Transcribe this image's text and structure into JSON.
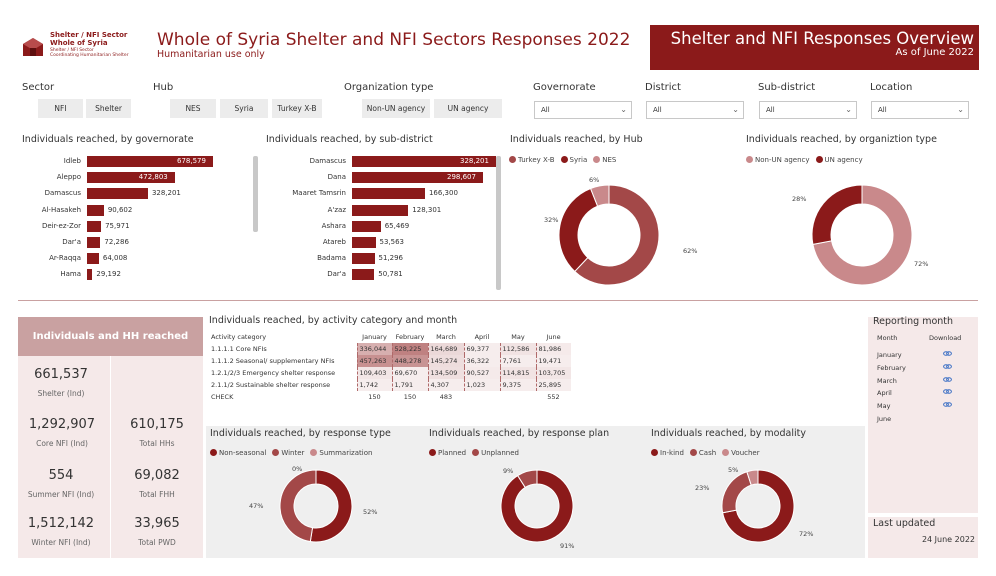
{
  "header": {
    "logo_line1": "Shelter / NFI Sector",
    "logo_line2": "Whole of Syria",
    "logo_line3": "Shelter / NFI Sector",
    "logo_line4": "Coordinating Humanitarian Shelter",
    "title": "Whole of Syria Shelter and NFI Sectors Responses 2022",
    "subtitle": "Humanitarian use only",
    "banner_title": "Shelter and NFI Responses Overview",
    "banner_sub": "As of June 2022"
  },
  "filters": {
    "sector": {
      "label": "Sector",
      "options": [
        "NFI",
        "Shelter"
      ]
    },
    "hub": {
      "label": "Hub",
      "options": [
        "NES",
        "Syria",
        "Turkey X-B"
      ]
    },
    "org": {
      "label": "Organization type",
      "options": [
        "Non-UN agency",
        "UN agency"
      ]
    },
    "governorate": {
      "label": "Governorate",
      "value": "All"
    },
    "district": {
      "label": "District",
      "value": "All"
    },
    "subdistrict": {
      "label": "Sub-district",
      "value": "All"
    },
    "location": {
      "label": "Location",
      "value": "All"
    }
  },
  "chart_data": [
    {
      "type": "bar",
      "title": "Individuals reached, by governorate",
      "categories": [
        "Idleb",
        "Aleppo",
        "Damascus",
        "Al-Hasakeh",
        "Deir-ez-Zor",
        "Dar'a",
        "Ar-Raqqa",
        "Hama"
      ],
      "values": [
        678579,
        472803,
        328201,
        90602,
        75971,
        72286,
        64008,
        29192
      ],
      "labels": [
        "678,579",
        "472,803",
        "328,201",
        "90,602",
        "75,971",
        "72,286",
        "64,008",
        "29,192"
      ]
    },
    {
      "type": "bar",
      "title": "Individuals reached, by sub-district",
      "categories": [
        "Damascus",
        "Dana",
        "Maaret Tamsrin",
        "A'zaz",
        "Ashara",
        "Atareb",
        "Badama",
        "Dar'a"
      ],
      "values": [
        328201,
        298607,
        166300,
        128301,
        65469,
        53563,
        51296,
        50781
      ],
      "labels": [
        "328,201",
        "298,607",
        "166,300",
        "128,301",
        "65,469",
        "53,563",
        "51,296",
        "50,781"
      ]
    },
    {
      "type": "pie",
      "title": "Individuals reached, by Hub",
      "categories": [
        "Turkey X-B",
        "Syria",
        "NES"
      ],
      "values": [
        62,
        32,
        6
      ],
      "colors": [
        "#a34848",
        "#8b1a1a",
        "#c9898b"
      ],
      "labels": [
        "62%",
        "32%",
        "6%"
      ]
    },
    {
      "type": "pie",
      "title": "Individuals reached, by organiztion type",
      "categories": [
        "Non-UN agency",
        "UN agency"
      ],
      "values": [
        72,
        28
      ],
      "colors": [
        "#c9898b",
        "#8b1a1a"
      ],
      "labels": [
        "72%",
        "28%"
      ]
    },
    {
      "type": "pie",
      "title": "Individuals reached, by response type",
      "categories": [
        "Non-seasonal",
        "Winter",
        "Summarization"
      ],
      "values": [
        52,
        47,
        0
      ],
      "colors": [
        "#8b1a1a",
        "#a34848",
        "#c9898b"
      ],
      "labels": [
        "52%",
        "47%",
        "0%"
      ]
    },
    {
      "type": "pie",
      "title": "Individuals reached, by response plan",
      "categories": [
        "Planned",
        "Unplanned"
      ],
      "values": [
        91,
        9
      ],
      "colors": [
        "#8b1a1a",
        "#a34848"
      ],
      "labels": [
        "91%",
        "9%"
      ]
    },
    {
      "type": "pie",
      "title": "Individuals reached, by modality",
      "categories": [
        "In-kind",
        "Cash",
        "Voucher"
      ],
      "values": [
        72,
        23,
        5
      ],
      "colors": [
        "#8b1a1a",
        "#a34848",
        "#c9898b"
      ],
      "labels": [
        "72%",
        "23%",
        "5%"
      ]
    }
  ],
  "kpis": {
    "header": "Individuals and HH reached",
    "items": [
      {
        "value": "661,537",
        "label": "Shelter (Ind)"
      },
      {
        "value": "1,292,907",
        "label": "Core NFI (Ind)"
      },
      {
        "value": "610,175",
        "label": "Total HHs"
      },
      {
        "value": "554",
        "label": "Summer NFI (Ind)"
      },
      {
        "value": "69,082",
        "label": "Total FHH"
      },
      {
        "value": "1,512,142",
        "label": "Winter NFI (Ind)"
      },
      {
        "value": "33,965",
        "label": "Total PWD"
      }
    ]
  },
  "activity": {
    "title": "Individuals reached, by activity category and month",
    "head": [
      "Activity category",
      "January",
      "February",
      "March",
      "April",
      "May",
      "June"
    ],
    "rows": [
      [
        "1.1.1.1 Core NFIs",
        "336,044",
        "528,225",
        "164,689",
        "69,377",
        "112,586",
        "81,986"
      ],
      [
        "1.1.1.2 Seasonal/ supplementary NFIs",
        "457,263",
        "448,278",
        "145,274",
        "36,322",
        "7,761",
        "19,471"
      ],
      [
        "1.2.1/2/3 Emergency shelter response",
        "109,403",
        "69,670",
        "134,509",
        "90,527",
        "114,815",
        "103,705"
      ],
      [
        "2.1.1/2 Sustainable shelter response",
        "1,742",
        "1,791",
        "4,307",
        "1,023",
        "9,375",
        "25,895"
      ],
      [
        "CHECK",
        "150",
        "150",
        "483",
        "",
        "",
        "552"
      ]
    ],
    "values": [
      [
        336044,
        528225,
        164689,
        69377,
        112586,
        81986
      ],
      [
        457263,
        448278,
        145274,
        36322,
        7761,
        19471
      ],
      [
        109403,
        69670,
        134509,
        90527,
        114815,
        103705
      ],
      [
        1742,
        1791,
        4307,
        1023,
        9375,
        25895
      ]
    ]
  },
  "reporting": {
    "title": "Reporting month",
    "col_month": "Month",
    "col_download": "Download",
    "months": [
      "January",
      "February",
      "March",
      "April",
      "May",
      "June"
    ]
  },
  "updated": {
    "label": "Last updated",
    "value": "24 June 2022"
  }
}
